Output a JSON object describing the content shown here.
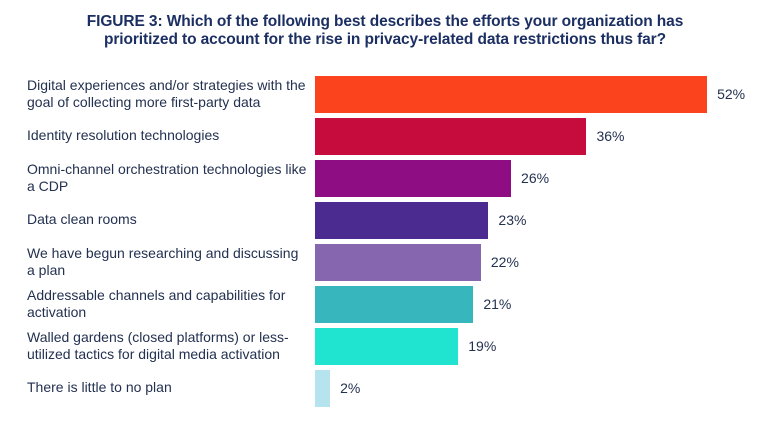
{
  "title": {
    "text": "FIGURE 3: Which of the following best describes the efforts your organization has prioritized to account for the rise in privacy-related data restrictions thus far?"
  },
  "colors": {
    "title_text": "#1C2F63",
    "label_text": "#233150",
    "background": "#FFFFFF"
  },
  "chart_data": {
    "type": "bar",
    "orientation": "horizontal",
    "title": "FIGURE 3: Which of the following best describes the efforts your organization has prioritized to account for the rise in privacy-related data restrictions thus far?",
    "xlabel": "",
    "ylabel": "",
    "xlim": [
      0,
      55
    ],
    "grid": false,
    "legend": false,
    "value_suffix": "%",
    "categories": [
      "Digital experiences and/or strategies with the goal of collecting more first-party data",
      "Identity resolution technologies",
      "Omni-channel orchestration technologies like a CDP",
      "Data clean rooms",
      "We have begun researching and discussing a plan",
      "Addressable channels and capabilities for activation",
      "Walled gardens (closed platforms) or less-utilized tactics for digital media activation",
      "There is little to no plan"
    ],
    "values": [
      52,
      36,
      26,
      23,
      22,
      21,
      19,
      2
    ],
    "value_labels": [
      "52%",
      "36%",
      "26%",
      "23%",
      "22%",
      "21%",
      "19%",
      "2%"
    ],
    "bar_colors": [
      "#FB431D",
      "#C60B3D",
      "#8E0D83",
      "#4B2B8F",
      "#8566AF",
      "#38B6BD",
      "#20E4CF",
      "#B6E4EE"
    ]
  }
}
